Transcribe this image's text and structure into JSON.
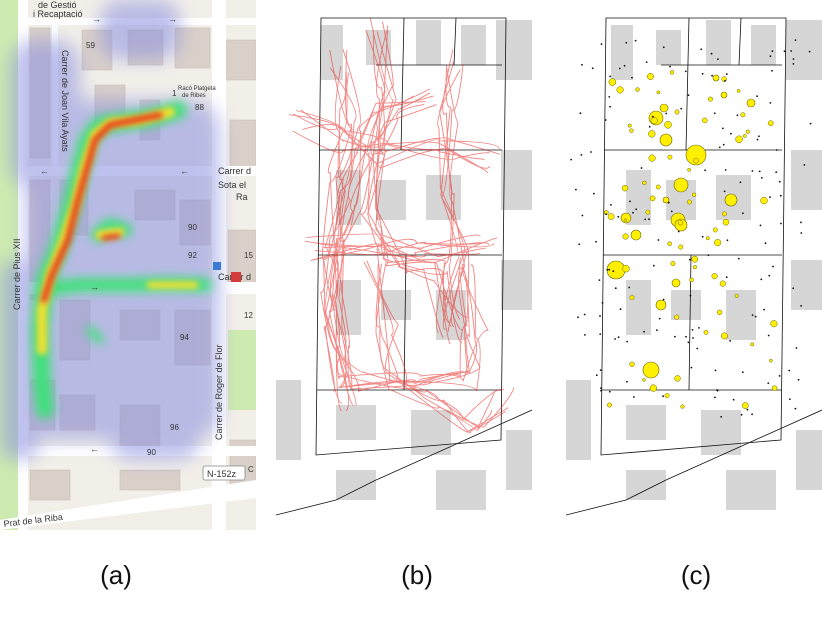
{
  "captions": {
    "a": "(a)",
    "b": "(b)",
    "c": "(c)"
  },
  "panel_a": {
    "streets": {
      "joan_vila_ayats": "Carrer de Joan Vila Ayats",
      "pius_xii": "Carrer de Pius XII",
      "roger_de_flor": "Carrer de Roger de Flor",
      "prat_de_la_riba": "Prat de la Riba",
      "carrer_top": "Carrer d",
      "carrer_mid": "Carrer d"
    },
    "labels": {
      "office_line1": "de Gestió",
      "office_line2": "i Recaptació",
      "park_line1": "Racó Platgeta",
      "park_line2": "de Ribes",
      "sota_line1": "Sota el",
      "sota_line2": "Ra",
      "road_badge": "N-152z"
    },
    "house_numbers": [
      "59",
      "1",
      "88",
      "90",
      "92",
      "94",
      "96",
      "90",
      "15",
      "12",
      "C"
    ]
  },
  "colors": {
    "map_bg": "#f2efe9",
    "building": "#d9d0c9",
    "road": "#ffffff",
    "park": "#cdebb0",
    "heat_low": "#8a8fe0",
    "heat_mid": "#3fe07a",
    "heat_high": "#e8321b",
    "trajectory": "#e8231e",
    "stop_fill": "#ffef00",
    "stop_stroke": "#6b6400",
    "footprint": "#d6d6d6"
  }
}
